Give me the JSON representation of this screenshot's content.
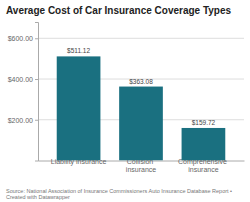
{
  "chart_data": {
    "type": "bar",
    "title": "Average Cost of Car Insurance Coverage Types",
    "categories": [
      "Liability insurance",
      "Collision insurance",
      "Comprehensive\ninsurance"
    ],
    "values": [
      511.12,
      363.08,
      159.72
    ],
    "value_labels": [
      "$511.12",
      "$363.08",
      "$159.72"
    ],
    "data_labels": true,
    "color": "#1a7080",
    "ylim": [
      0,
      680
    ],
    "yticks": [
      {
        "value": 200,
        "label": "$200.00"
      },
      {
        "value": 400,
        "label": "$400.00"
      },
      {
        "value": 600,
        "label": "$600.00"
      }
    ],
    "grid": true,
    "annotations": [
      "Source: National Association of Insurance Commissioners Auto Insurance Database Report •\nCreated with Datawrapper"
    ]
  }
}
